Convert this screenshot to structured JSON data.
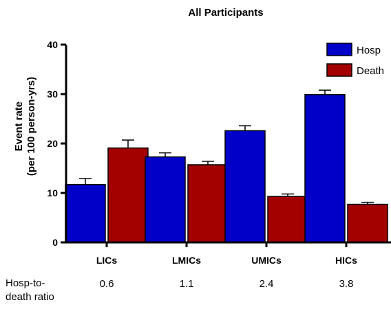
{
  "chart_data": {
    "type": "bar",
    "title": "All Participants",
    "ylabel_line1": "Event rate",
    "ylabel_line2": "(per 100 person-yrs)",
    "xlabel": "",
    "categories": [
      "LICs",
      "LMICs",
      "UMICs",
      "HICs"
    ],
    "ylim": [
      0,
      40
    ],
    "yticks": [
      0,
      10,
      20,
      30,
      40
    ],
    "legend_position": "top-right",
    "series": [
      {
        "name": "Hosp",
        "color": "#0000c8",
        "values": [
          11.7,
          17.3,
          22.6,
          29.9
        ],
        "errors": [
          1.2,
          0.8,
          1.0,
          0.9
        ]
      },
      {
        "name": "Death",
        "color": "#a30000",
        "values": [
          19.1,
          15.7,
          9.3,
          7.7
        ],
        "errors": [
          1.6,
          0.7,
          0.5,
          0.4
        ]
      }
    ]
  },
  "ratio_row": {
    "label": "Hosp-to-death ratio",
    "values": [
      "0.6",
      "1.1",
      "2.4",
      "3.8"
    ]
  }
}
